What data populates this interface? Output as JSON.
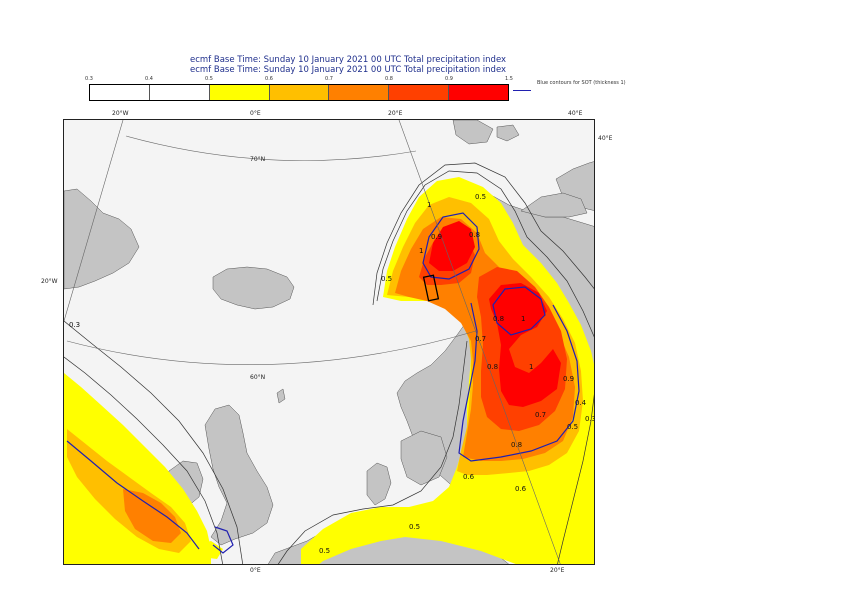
{
  "header": {
    "title_line1": "ecmf  Base Time: Sunday 10 January 2021 00 UTC Total precipitation index",
    "title_line2": "ecmf  Base Time: Sunday 10 January 2021 00 UTC Total precipitation index"
  },
  "legend": {
    "ticks": [
      "0.3",
      "0.4",
      "0.5",
      "0.6",
      "0.7",
      "0.8",
      "0.9",
      "1.5"
    ],
    "colors": [
      "#ffffff",
      "#ffffff",
      "#ffff00",
      "#ffbf00",
      "#ff8000",
      "#ff4000",
      "#ff0000"
    ],
    "sot_label": "Blue contours for SOT (thickness 1)"
  },
  "map": {
    "colors": {
      "land": "#c4c4c4",
      "sea": "#f4f4f4",
      "lvl05": "#ffff00",
      "lvl06": "#ffbf00",
      "lvl07": "#ff8000",
      "lvl08": "#ff4000",
      "lvl09": "#ff0000",
      "sot": "#2020b0"
    },
    "grid_labels": {
      "top_20w": "20°W",
      "top_0e": "0°E",
      "top_20e": "20°E",
      "top_40e": "40°E",
      "right_40e": "40°E",
      "left_20w": "20°W",
      "lat70": "70°N",
      "lat60": "60°N",
      "bottom_0e": "0°E",
      "bottom_20e": "20°E"
    },
    "contour_labels": [
      "0.5",
      "0.8",
      "0.9",
      "1",
      "1",
      "0.5",
      "0.8",
      "0.7",
      "1",
      "0.8",
      "1",
      "0.9",
      "0.8",
      "0.7",
      "0.6",
      "0.5",
      "0.4",
      "0.3",
      "0.5",
      "0.6",
      "0.3",
      "0.5"
    ]
  }
}
